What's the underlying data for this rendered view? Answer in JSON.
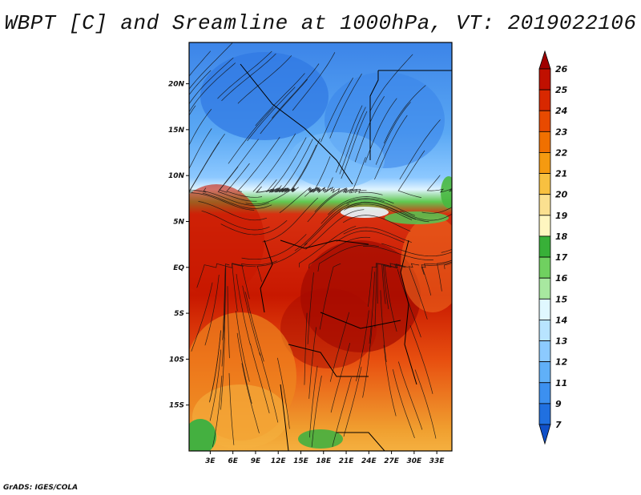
{
  "title": "WBPT [C] and Sreamline at 1000hPa, VT: 2019022106",
  "credit": "GrADS: IGES/COLA",
  "map": {
    "lat_ticks": [
      "20N",
      "15N",
      "10N",
      "5N",
      "EQ",
      "5S",
      "10S",
      "15S"
    ],
    "lon_ticks": [
      "3E",
      "6E",
      "9E",
      "12E",
      "15E",
      "18E",
      "21E",
      "24E",
      "27E",
      "30E",
      "33E"
    ],
    "lat_values": [
      20,
      15,
      10,
      5,
      0,
      -5,
      -10,
      -15
    ],
    "lon_values": [
      3,
      6,
      9,
      12,
      15,
      18,
      21,
      24,
      27,
      30,
      33
    ],
    "lat_range": [
      -20,
      24.5
    ],
    "lon_range": [
      0.2,
      35
    ]
  },
  "colorbar": {
    "labels": [
      "26",
      "25",
      "24",
      "23",
      "22",
      "21",
      "20",
      "19",
      "18",
      "17",
      "16",
      "15",
      "14",
      "13",
      "12",
      "11",
      "9",
      "7"
    ],
    "colors": [
      "#a00000",
      "#c01000",
      "#d82800",
      "#e84a00",
      "#f07000",
      "#f59a10",
      "#f8c040",
      "#fbe090",
      "#fff6c0",
      "#38b038",
      "#70d060",
      "#a8e8a0",
      "#e0f8ff",
      "#b8e4ff",
      "#8ccaff",
      "#60b0f8",
      "#3c90f0",
      "#2070e0",
      "#1050c8"
    ]
  }
}
